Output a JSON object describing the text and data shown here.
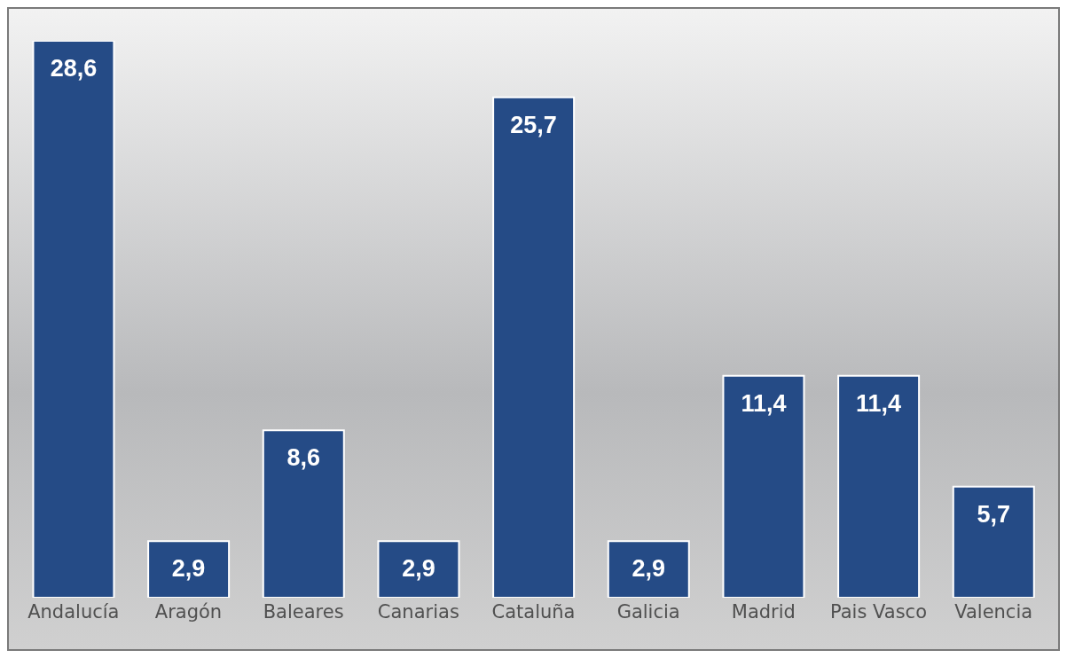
{
  "chart_data": {
    "type": "bar",
    "categories": [
      "Andalucía",
      "Aragón",
      "Baleares",
      "Canarias",
      "Cataluña",
      "Galicia",
      "Madrid",
      "Pais Vasco",
      "Valencia"
    ],
    "values": [
      28.6,
      2.9,
      8.6,
      2.9,
      25.7,
      2.9,
      11.4,
      11.4,
      5.7
    ],
    "value_labels": [
      "28,6",
      "2,9",
      "8,6",
      "2,9",
      "25,7",
      "2,9",
      "11,4",
      "11,4",
      "5,7"
    ],
    "color": "#254b86",
    "grid": false,
    "legend": false
  }
}
